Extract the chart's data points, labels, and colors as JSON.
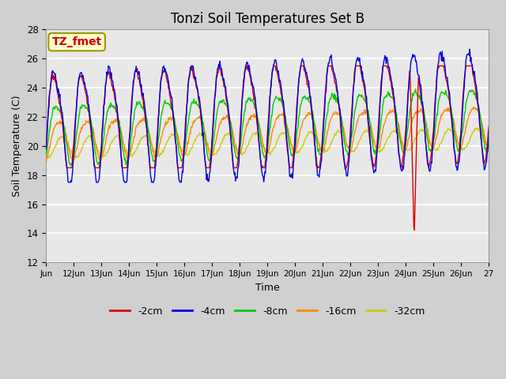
{
  "title": "Tonzi Soil Temperatures Set B",
  "xlabel": "Time",
  "ylabel": "Soil Temperature (C)",
  "ylim": [
    12,
    28
  ],
  "yticks": [
    12,
    14,
    16,
    18,
    20,
    22,
    24,
    26,
    28
  ],
  "annotation_label": "TZ_fmet",
  "annotation_color": "#cc0000",
  "annotation_bg": "#ffffcc",
  "annotation_border": "#999900",
  "fig_facecolor": "#d0d0d0",
  "plot_facecolor": "#e8e8e8",
  "legend_entries": [
    "-2cm",
    "-4cm",
    "-8cm",
    "-16cm",
    "-32cm"
  ],
  "legend_colors": [
    "#dd0000",
    "#0000dd",
    "#00cc00",
    "#ff8800",
    "#cccc00"
  ],
  "line_colors": {
    "2cm": "#dd0000",
    "4cm": "#0000dd",
    "8cm": "#00cc00",
    "16cm": "#ff8800",
    "32cm": "#cccc00"
  },
  "x_tick_labels": [
    "Jun",
    "12Jun",
    "13Jun",
    "14Jun",
    "15Jun",
    "16Jun",
    "17Jun",
    "18Jun",
    "19Jun",
    "20Jun",
    "21Jun",
    "22Jun",
    "23Jun",
    "24Jun",
    "25Jun",
    "26Jun",
    "27"
  ]
}
